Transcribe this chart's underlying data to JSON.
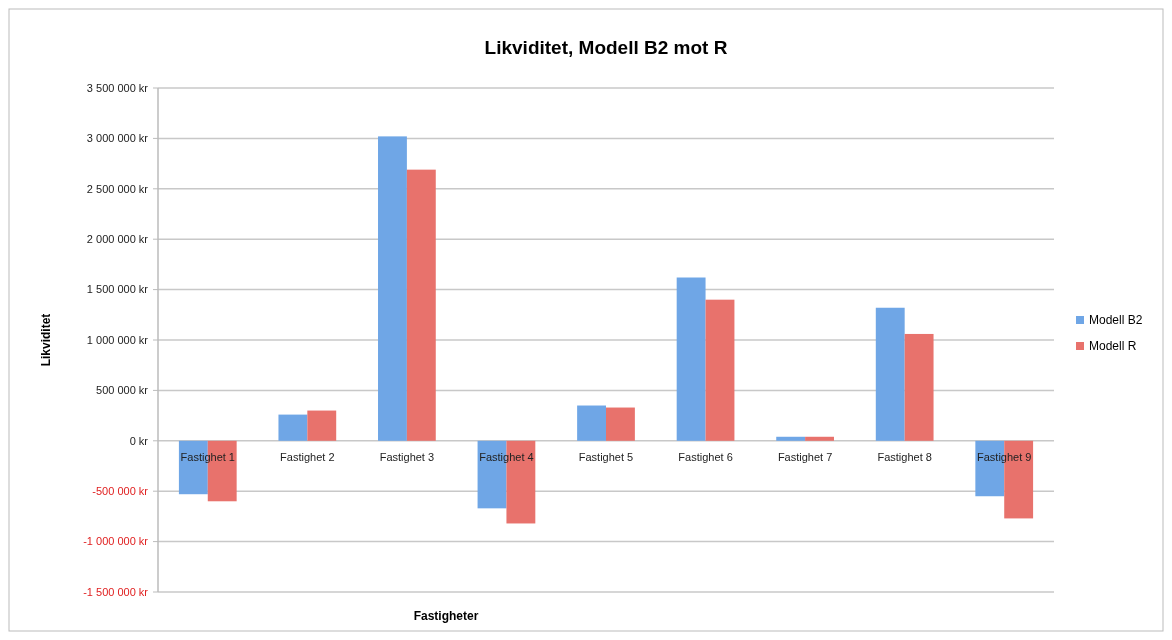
{
  "chart_data": {
    "type": "bar",
    "title": "Likviditet, Modell B2 mot R",
    "xlabel": "Fastigheter",
    "ylabel": "Likviditet",
    "categories": [
      "Fastighet 1",
      "Fastighet 2",
      "Fastighet 3",
      "Fastighet 4",
      "Fastighet 5",
      "Fastighet 6",
      "Fastighet 7",
      "Fastighet 8",
      "Fastighet 9"
    ],
    "series": [
      {
        "name": "Modell B2",
        "color": "#6fa6e6",
        "values": [
          -530000,
          260000,
          3020000,
          -670000,
          350000,
          1620000,
          40000,
          1320000,
          -550000
        ]
      },
      {
        "name": "Modell R",
        "color": "#e8726c",
        "values": [
          -600000,
          300000,
          2690000,
          -820000,
          330000,
          1400000,
          40000,
          1060000,
          -770000
        ]
      }
    ],
    "ylim": [
      -1500000,
      3500000
    ],
    "yticks": [
      {
        "value": -1500000,
        "label": "-1 500 000 kr"
      },
      {
        "value": -1000000,
        "label": "-1 000 000 kr"
      },
      {
        "value": -500000,
        "label": "-500 000 kr"
      },
      {
        "value": 0,
        "label": "0 kr"
      },
      {
        "value": 500000,
        "label": "500 000 kr"
      },
      {
        "value": 1000000,
        "label": "1 000 000 kr"
      },
      {
        "value": 1500000,
        "label": "1 500 000 kr"
      },
      {
        "value": 2000000,
        "label": "2 000 000 kr"
      },
      {
        "value": 2500000,
        "label": "2 500 000 kr"
      },
      {
        "value": 3000000,
        "label": "3 000 000 kr"
      },
      {
        "value": 3500000,
        "label": "3 500 000 kr"
      }
    ],
    "grid": true,
    "legend": "right"
  }
}
